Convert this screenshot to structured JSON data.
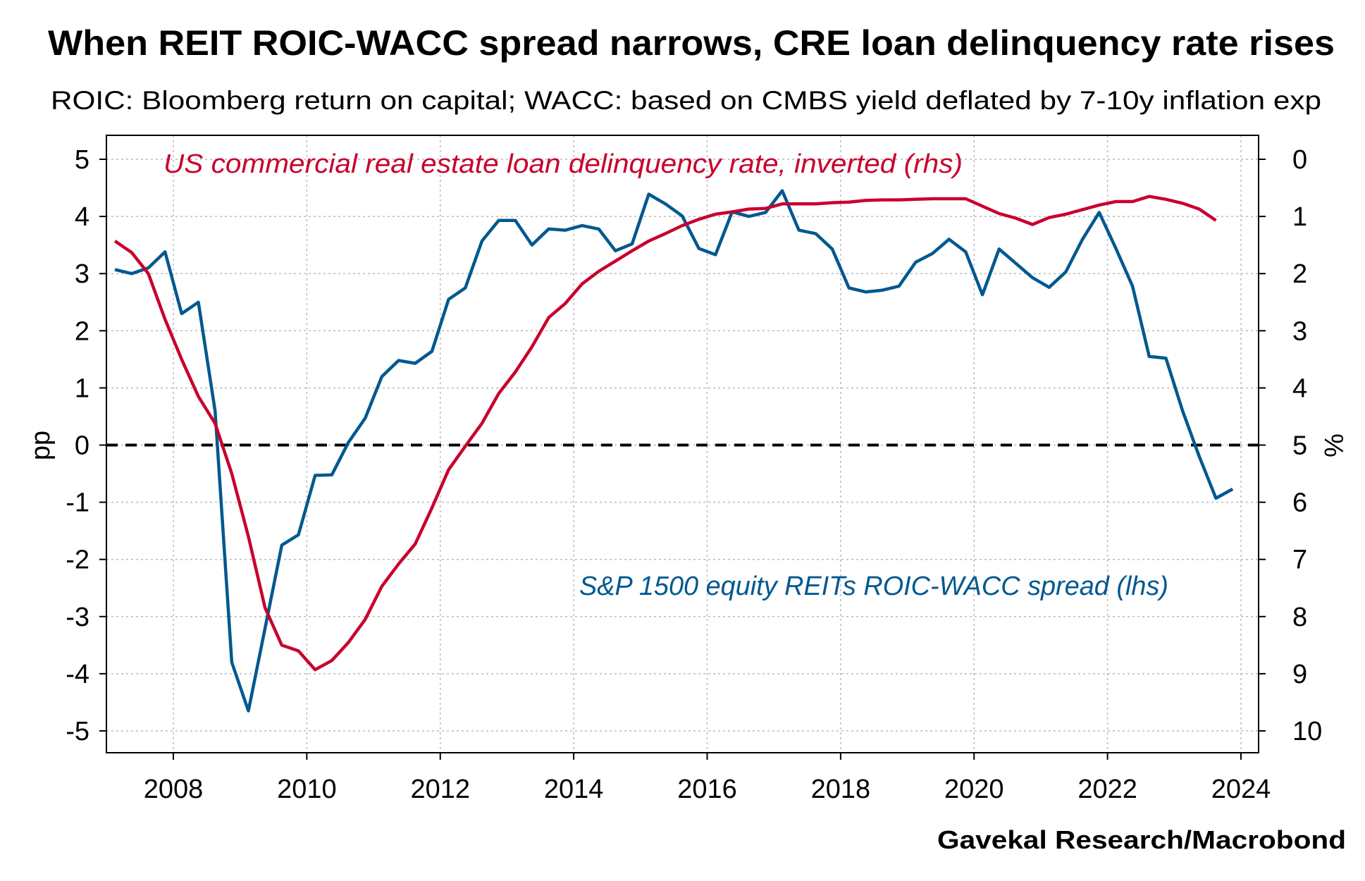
{
  "chart_data": {
    "type": "line",
    "title": "When REIT ROIC-WACC spread narrows, CRE loan delinquency rate rises",
    "subtitle": "ROIC: Bloomberg return on capital; WACC: based on CMBS yield deflated by 7-10y inflation exp",
    "source": "Gavekal Research/Macrobond",
    "ylabel_left": "pp",
    "ylabel_right": "%",
    "ylim_left": [
      -5.4,
      5.4
    ],
    "ylim_right_inverted": [
      10.4,
      -0.4
    ],
    "xlim": [
      2007.0,
      2024.3
    ],
    "x_ticks": [
      "2008",
      "2010",
      "2012",
      "2014",
      "2016",
      "2018",
      "2020",
      "2022",
      "2024"
    ],
    "y_ticks_left": [
      "5",
      "4",
      "3",
      "2",
      "1",
      "0",
      "-1",
      "-2",
      "-3",
      "-4",
      "-5"
    ],
    "y_ticks_right": [
      "0",
      "1",
      "2",
      "3",
      "4",
      "5",
      "6",
      "7",
      "8",
      "9",
      "10"
    ],
    "grid": true,
    "reference_line": {
      "axis": "left",
      "value": 0,
      "style": "dashed",
      "color": "#000000"
    },
    "x": [
      "2007-02",
      "2007-05",
      "2007-08",
      "2007-11",
      "2008-02",
      "2008-05",
      "2008-08",
      "2008-11",
      "2009-02",
      "2009-05",
      "2009-08",
      "2009-11",
      "2010-02",
      "2010-05",
      "2010-08",
      "2010-11",
      "2011-02",
      "2011-05",
      "2011-08",
      "2011-11",
      "2012-02",
      "2012-05",
      "2012-08",
      "2012-11",
      "2013-02",
      "2013-05",
      "2013-08",
      "2013-11",
      "2014-02",
      "2014-05",
      "2014-08",
      "2014-11",
      "2015-02",
      "2015-05",
      "2015-08",
      "2015-11",
      "2016-02",
      "2016-05",
      "2016-08",
      "2016-11",
      "2017-02",
      "2017-05",
      "2017-08",
      "2017-11",
      "2018-02",
      "2018-05",
      "2018-08",
      "2018-11",
      "2019-02",
      "2019-05",
      "2019-08",
      "2019-11",
      "2020-02",
      "2020-05",
      "2020-08",
      "2020-11",
      "2021-02",
      "2021-05",
      "2021-08",
      "2021-11",
      "2022-02",
      "2022-05",
      "2022-08",
      "2022-11",
      "2023-02",
      "2023-05",
      "2023-08",
      "2023-11"
    ],
    "series": [
      {
        "name": "S&P 1500 equity REITs ROIC-WACC spread (lhs)",
        "axis": "left",
        "color": "#00588f",
        "values": [
          3.07,
          3.0,
          3.1,
          3.38,
          2.3,
          2.5,
          0.6,
          -3.8,
          -4.65,
          -3.2,
          -1.75,
          -1.57,
          -0.53,
          -0.52,
          0.05,
          0.47,
          1.2,
          1.48,
          1.43,
          1.64,
          2.55,
          2.75,
          3.57,
          3.93,
          3.93,
          3.5,
          3.78,
          3.76,
          3.84,
          3.78,
          3.4,
          3.52,
          4.39,
          4.22,
          4.01,
          3.44,
          3.33,
          4.08,
          4.0,
          4.07,
          4.45,
          3.76,
          3.7,
          3.43,
          2.75,
          2.68,
          2.71,
          2.78,
          3.2,
          3.35,
          3.6,
          3.38,
          2.63,
          3.43,
          3.18,
          2.93,
          2.76,
          3.03,
          3.6,
          4.07,
          3.44,
          2.78,
          1.55,
          1.52,
          0.6,
          -0.2,
          -0.93,
          -0.77
        ]
      },
      {
        "name": "US commercial real estate loan delinquency rate, inverted (rhs)",
        "axis": "right",
        "color": "#c8002d",
        "values": [
          1.43,
          1.63,
          2.0,
          2.8,
          3.5,
          4.15,
          4.62,
          5.5,
          6.6,
          7.85,
          8.5,
          8.6,
          8.93,
          8.77,
          8.45,
          8.05,
          7.47,
          7.08,
          6.73,
          6.1,
          5.43,
          5.02,
          4.62,
          4.1,
          3.72,
          3.28,
          2.77,
          2.52,
          2.18,
          1.96,
          1.78,
          1.6,
          1.43,
          1.3,
          1.16,
          1.05,
          0.96,
          0.92,
          0.87,
          0.86,
          0.78,
          0.78,
          0.78,
          0.76,
          0.75,
          0.72,
          0.71,
          0.71,
          0.7,
          0.69,
          0.69,
          0.69,
          0.82,
          0.95,
          1.03,
          1.14,
          1.02,
          0.96,
          0.88,
          0.8,
          0.74,
          0.74,
          0.65,
          0.7,
          0.77,
          0.87,
          1.07,
          null
        ]
      }
    ]
  }
}
